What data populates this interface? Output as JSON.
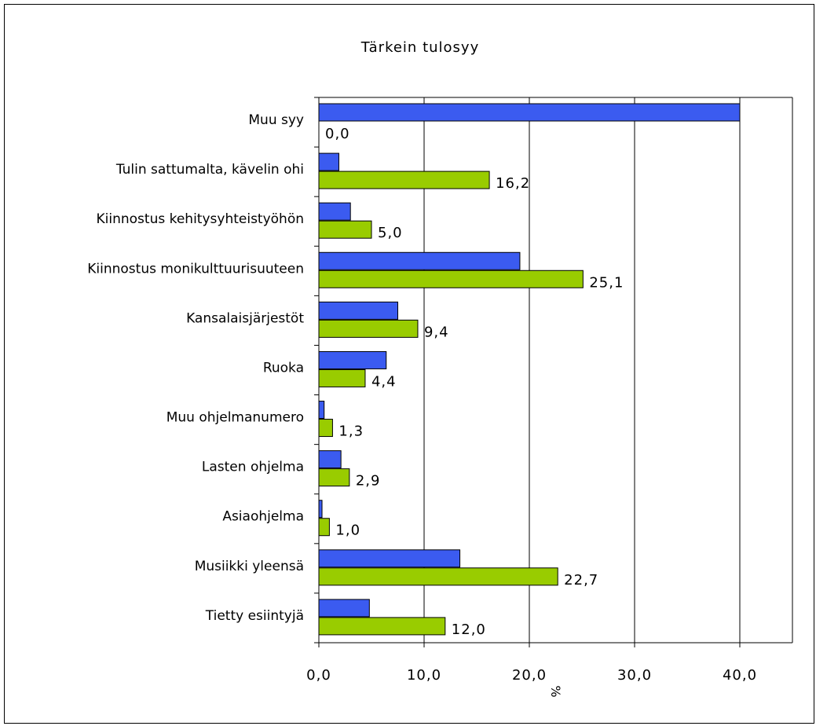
{
  "colors": {
    "series_1": "#3b5bf0",
    "series_2": "#99cc00",
    "stroke": "#000000"
  },
  "chart_data": {
    "type": "bar",
    "orientation": "horizontal",
    "title": "Tärkein tulosyy",
    "xlabel": "%",
    "ylabel": "",
    "xlim": [
      0,
      45
    ],
    "xticks": [
      0,
      10,
      20,
      30,
      40
    ],
    "xtick_labels": [
      "0,0",
      "10,0",
      "20,0",
      "30,0",
      "40,0"
    ],
    "grid": "vertical gridlines",
    "legend": "none",
    "categories": [
      "Muu syy",
      "Tulin sattumalta, kävelin ohi",
      "Kiinnostus kehitysyhteistyöhön",
      "Kiinnostus monikulttuurisuuteen",
      "Kansalaisjärjestöt",
      "Ruoka",
      "Muu ohjelmanumero",
      "Lasten ohjelma",
      "Asiaohjelma",
      "Musiikki yleensä",
      "Tietty esiintyjä"
    ],
    "series": [
      {
        "color": "#3b5bf0",
        "values": [
          40.0,
          1.9,
          3.0,
          19.1,
          7.5,
          6.4,
          0.5,
          2.1,
          0.3,
          13.4,
          4.8
        ]
      },
      {
        "color": "#99cc00",
        "values": [
          0.0,
          16.2,
          5.0,
          25.1,
          9.4,
          4.4,
          1.3,
          2.9,
          1.0,
          22.7,
          12.0
        ],
        "data_labels": [
          "0,0",
          "16,2",
          "5,0",
          "25,1",
          "9,4",
          "4,4",
          "1,3",
          "2,9",
          "1,0",
          "22,7",
          "12,0"
        ]
      }
    ]
  }
}
